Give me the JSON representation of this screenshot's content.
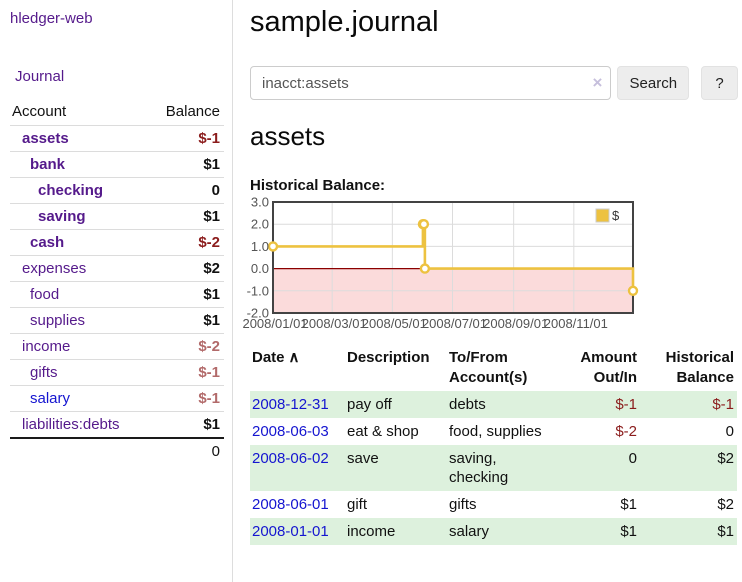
{
  "brand": "hledger-web",
  "nav": {
    "journal": "Journal"
  },
  "accounts_panel": {
    "col_account": "Account",
    "col_balance": "Balance",
    "rows": [
      {
        "name": "assets",
        "balance": "$-1",
        "indent": 1,
        "style": "bold",
        "num": "neg",
        "link": "purple"
      },
      {
        "name": "bank",
        "balance": "$1",
        "indent": 2,
        "style": "bold",
        "num": "pos",
        "link": "purple"
      },
      {
        "name": "checking",
        "balance": "0",
        "indent": 3,
        "style": "bold",
        "num": "pos",
        "link": "purple"
      },
      {
        "name": "saving",
        "balance": "$1",
        "indent": 3,
        "style": "bold",
        "num": "pos",
        "link": "purple"
      },
      {
        "name": "cash",
        "balance": "$-2",
        "indent": 2,
        "style": "bold",
        "num": "neg",
        "link": "purple"
      },
      {
        "name": "expenses",
        "balance": "$2",
        "indent": 1,
        "style": "normal",
        "num": "pos",
        "link": "purple"
      },
      {
        "name": "food",
        "balance": "$1",
        "indent": 2,
        "style": "normal",
        "num": "pos",
        "link": "purple"
      },
      {
        "name": "supplies",
        "balance": "$1",
        "indent": 2,
        "style": "normal",
        "num": "pos",
        "link": "purple"
      },
      {
        "name": "income",
        "balance": "$-2",
        "indent": 1,
        "style": "normal",
        "num": "neg-light",
        "link": "purple"
      },
      {
        "name": "gifts",
        "balance": "$-1",
        "indent": 2,
        "style": "normal",
        "num": "neg-light",
        "link": "purple"
      },
      {
        "name": "salary",
        "balance": "$-1",
        "indent": 2,
        "style": "normal",
        "num": "neg-light",
        "link": "blue"
      },
      {
        "name": "liabilities:debts",
        "balance": "$1",
        "indent": 1,
        "style": "normal",
        "num": "pos",
        "link": "purple"
      }
    ],
    "total": "0"
  },
  "header": {
    "title": "sample.journal"
  },
  "search": {
    "value": "inacct:assets",
    "clear_icon": "×",
    "search_label": "Search",
    "help_label": "?"
  },
  "account_page": {
    "heading": "assets",
    "chart_title": "Historical Balance:"
  },
  "chart_data": {
    "type": "line",
    "step": true,
    "title": "Historical Balance",
    "legend": [
      {
        "label": "$",
        "color": "#EDC240"
      }
    ],
    "legend_position": "top-right",
    "grid": true,
    "xlim_days": [
      0,
      365
    ],
    "ylim": [
      -2,
      3
    ],
    "y_ticks": [
      {
        "label": "3.0",
        "value": 3
      },
      {
        "label": "2.0",
        "value": 2
      },
      {
        "label": "1.0",
        "value": 1
      },
      {
        "label": "0.0",
        "value": 0
      },
      {
        "label": "-1.0",
        "value": -1
      },
      {
        "label": "-2.0",
        "value": -2
      }
    ],
    "x_ticks": [
      {
        "label": "2008/01/01",
        "day": 0
      },
      {
        "label": "2008/03/01",
        "day": 60
      },
      {
        "label": "2008/05/01",
        "day": 121
      },
      {
        "label": "2008/07/01",
        "day": 182
      },
      {
        "label": "2008/09/01",
        "day": 244
      },
      {
        "label": "2008/11/01",
        "day": 305
      }
    ],
    "series": [
      {
        "name": "$",
        "color": "#EDC240",
        "points": [
          {
            "date": "2008-01-01",
            "day": 0,
            "value": 1
          },
          {
            "date": "2008-06-01",
            "day": 152,
            "value": 2
          },
          {
            "date": "2008-06-02",
            "day": 153,
            "value": 2
          },
          {
            "date": "2008-06-03",
            "day": 154,
            "value": 0
          },
          {
            "date": "2008-12-31",
            "day": 365,
            "value": -1
          }
        ]
      }
    ],
    "negative_region": {
      "from": -2,
      "to": 0,
      "color": "#fbdbdb"
    },
    "zero_line_color": "#8b0000",
    "grid_color": "#dcdcdc",
    "border_color": "#434343",
    "tick_text_color": "#545454"
  },
  "register": {
    "headers": {
      "date": "Date",
      "sort_icon": "∧",
      "description": "Description",
      "accounts_line1": "To/From",
      "accounts_line2": "Account(s)",
      "amount_line1": "Amount",
      "amount_line2": "Out/In",
      "balance_line1": "Historical",
      "balance_line2": "Balance"
    },
    "rows": [
      {
        "date": "2008-12-31",
        "description": "pay off",
        "accounts": "debts",
        "amount": "$-1",
        "amount_num": "neg",
        "balance": "$-1",
        "balance_num": "neg"
      },
      {
        "date": "2008-06-03",
        "description": "eat & shop",
        "accounts": "food, supplies",
        "amount": "$-2",
        "amount_num": "neg",
        "balance": "0",
        "balance_num": "pos"
      },
      {
        "date": "2008-06-02",
        "description": "save",
        "accounts": "saving, checking",
        "amount": "0",
        "amount_num": "pos",
        "balance": "$2",
        "balance_num": "pos"
      },
      {
        "date": "2008-06-01",
        "description": "gift",
        "accounts": "gifts",
        "amount": "$1",
        "amount_num": "pos",
        "balance": "$2",
        "balance_num": "pos"
      },
      {
        "date": "2008-01-01",
        "description": "income",
        "accounts": "salary",
        "amount": "$1",
        "amount_num": "pos",
        "balance": "$1",
        "balance_num": "pos"
      }
    ]
  },
  "colors": {
    "purple_link": "#551a8b",
    "blue_link": "#1515d0",
    "negative": "#8b1c1c",
    "negative_light": "#b26a6a",
    "stripe_green": "#ddf1dd",
    "accent_yellow": "#EDC240"
  }
}
